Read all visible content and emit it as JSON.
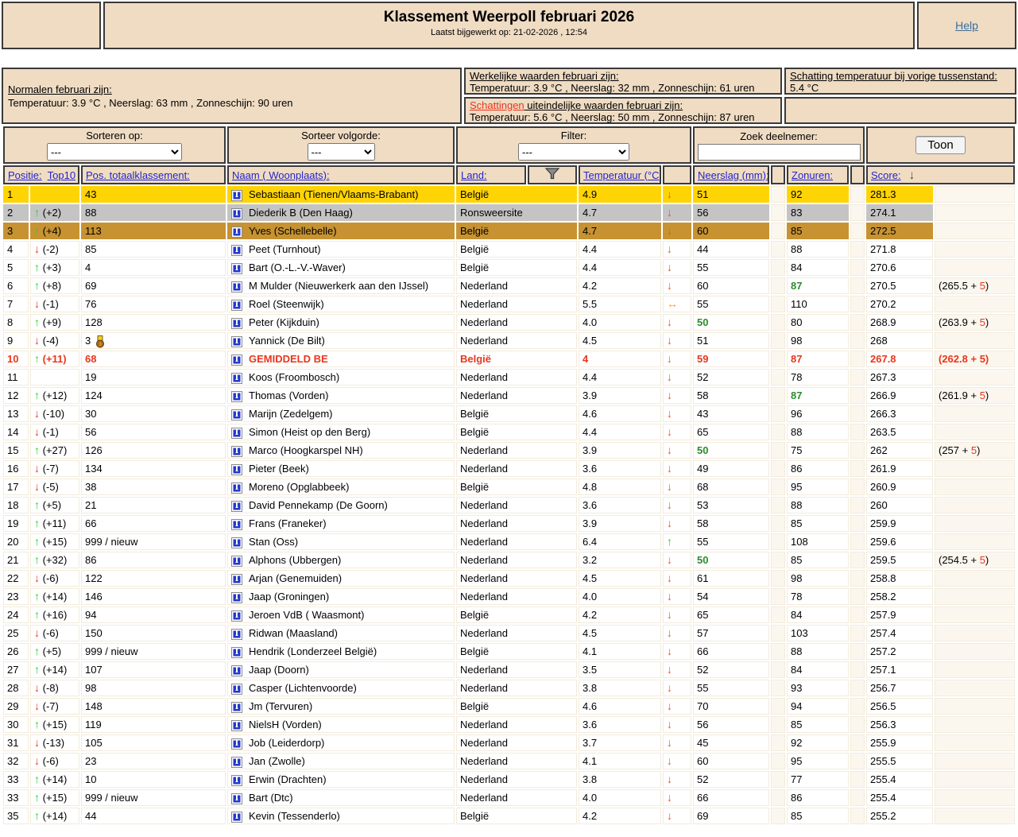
{
  "header": {
    "title": "Klassement Weerpoll februari 2026",
    "updated": "Laatst bijgewerkt op: 21-02-2026 , 12:54",
    "help_label": "Help"
  },
  "info": {
    "normals_title": "Normalen februari zijn:",
    "normals_values": "Temperatuur: 3.9 °C , Neerslag: 63 mm , Zonneschijn: 90 uren",
    "actual_title": "Werkelijke waarden februari zijn:",
    "actual_values": "Temperatuur: 3.9 °C , Neerslag: 32 mm , Zonneschijn: 61 uren",
    "estimate_title_red": "Schattingen",
    "estimate_title_rest": " uiteindelijke waarden februari zijn:",
    "estimate_values": "Temperatuur: 5.6 °C , Neerslag: 50 mm , Zonneschijn: 87 uren",
    "prev_estimate_title": "Schatting temperatuur bij vorige tussenstand:",
    "prev_estimate_value": "5.4 °C"
  },
  "controls": {
    "sort_by_label": "Sorteren op:",
    "sort_by_value": "---",
    "sort_order_label": "Sorteer volgorde:",
    "sort_order_value": "---",
    "filter_label": "Filter:",
    "filter_value": "---",
    "search_label": "Zoek deelnemer:",
    "search_value": "",
    "show_button": "Toon"
  },
  "columns": {
    "positie": "Positie:",
    "top10": "Top10",
    "pos_total": "Pos. totaalklassement:",
    "naam": "Naam ( Woonplaats):",
    "land": "Land:",
    "temperatuur": "Temperatuur (°C):",
    "neerslag": "Neerslag (mm):",
    "zonuren": "Zonuren:",
    "score": "Score:"
  },
  "icons": {
    "info_glyph": "I",
    "medal_rank": "3",
    "arrow_up": "↑",
    "arrow_down": "↓",
    "arrow_both": "↔",
    "score_sort_arrow": "↓",
    "funnel": "filter-funnel"
  },
  "colors": {
    "gold_row": "#FFD404",
    "silver_row": "#C4C4C4",
    "bronze_row": "#C79231",
    "beige_panel": "#EFDCC3",
    "red_text": "#E8361C",
    "green_value": "#2E8B2E",
    "arrow_up_green": "#2ECC2E",
    "trend_down_red": "#F4502C",
    "trend_both_orange": "#FF9820",
    "header_link_blue": "#2323CC",
    "help_link_blue": "#3A6E9E",
    "score_sort_arrow_maroon": "#7A2B10"
  },
  "rows": [
    {
      "pos": "1",
      "dir": "",
      "delta": "",
      "total": "43",
      "medal": false,
      "name": "Sebastiaan (Tienen/Vlaams-Brabant)",
      "land": "België",
      "temp": "4.9",
      "trend": "down",
      "rain": "51",
      "rain_green": false,
      "sun": "92",
      "sun_green": false,
      "score": "281.3",
      "bonus": "",
      "style": "gold"
    },
    {
      "pos": "2",
      "dir": "up",
      "delta": "(+2)",
      "total": "88",
      "medal": false,
      "name": "Diederik B (Den Haag)",
      "land": "Ronsweersite",
      "temp": "4.7",
      "trend": "down",
      "rain": "56",
      "rain_green": false,
      "sun": "83",
      "sun_green": false,
      "score": "274.1",
      "bonus": "",
      "style": "silver"
    },
    {
      "pos": "3",
      "dir": "up",
      "delta": "(+4)",
      "total": "113",
      "medal": false,
      "name": "Yves (Schellebelle)",
      "land": "België",
      "temp": "4.7",
      "trend": "down",
      "rain": "60",
      "rain_green": false,
      "sun": "85",
      "sun_green": false,
      "score": "272.5",
      "bonus": "",
      "style": "bronze"
    },
    {
      "pos": "4",
      "dir": "down",
      "delta": "(-2)",
      "total": "85",
      "medal": false,
      "name": "Peet (Turnhout)",
      "land": "België",
      "temp": "4.4",
      "trend": "down",
      "rain": "44",
      "rain_green": false,
      "sun": "88",
      "sun_green": false,
      "score": "271.8",
      "bonus": "",
      "style": ""
    },
    {
      "pos": "5",
      "dir": "up",
      "delta": "(+3)",
      "total": "4",
      "medal": false,
      "name": "Bart (O.-L.-V.-Waver)",
      "land": "België",
      "temp": "4.4",
      "trend": "down",
      "rain": "55",
      "rain_green": false,
      "sun": "84",
      "sun_green": false,
      "score": "270.6",
      "bonus": "",
      "style": ""
    },
    {
      "pos": "6",
      "dir": "up",
      "delta": "(+8)",
      "total": "69",
      "medal": false,
      "name": "M Mulder (Nieuwerkerk aan den IJssel)",
      "land": "Nederland",
      "temp": "4.2",
      "trend": "down",
      "rain": "60",
      "rain_green": false,
      "sun": "87",
      "sun_green": true,
      "score": "270.5",
      "bonus": "265.5",
      "style": ""
    },
    {
      "pos": "7",
      "dir": "down",
      "delta": "(-1)",
      "total": "76",
      "medal": false,
      "name": "Roel (Steenwijk)",
      "land": "Nederland",
      "temp": "5.5",
      "trend": "both",
      "rain": "55",
      "rain_green": false,
      "sun": "110",
      "sun_green": false,
      "score": "270.2",
      "bonus": "",
      "style": ""
    },
    {
      "pos": "8",
      "dir": "up",
      "delta": "(+9)",
      "total": "128",
      "medal": false,
      "name": "Peter (Kijkduin)",
      "land": "Nederland",
      "temp": "4.0",
      "trend": "down",
      "rain": "50",
      "rain_green": true,
      "sun": "80",
      "sun_green": false,
      "score": "268.9",
      "bonus": "263.9",
      "style": ""
    },
    {
      "pos": "9",
      "dir": "down",
      "delta": "(-4)",
      "total": "3",
      "medal": true,
      "name": "Yannick (De Bilt)",
      "land": "Nederland",
      "temp": "4.5",
      "trend": "down",
      "rain": "51",
      "rain_green": false,
      "sun": "98",
      "sun_green": false,
      "score": "268",
      "bonus": "",
      "style": ""
    },
    {
      "pos": "10",
      "dir": "up",
      "delta": "(+11)",
      "total": "68",
      "medal": false,
      "name": "GEMIDDELD BE",
      "land": "België",
      "temp": "4",
      "trend": "down",
      "rain": "59",
      "rain_green": false,
      "sun": "87",
      "sun_green": false,
      "score": "267.8",
      "bonus": "262.8",
      "style": "avg"
    },
    {
      "pos": "11",
      "dir": "",
      "delta": "",
      "total": "19",
      "medal": false,
      "name": "Koos (Froombosch)",
      "land": "Nederland",
      "temp": "4.4",
      "trend": "down",
      "rain": "52",
      "rain_green": false,
      "sun": "78",
      "sun_green": false,
      "score": "267.3",
      "bonus": "",
      "style": ""
    },
    {
      "pos": "12",
      "dir": "up",
      "delta": "(+12)",
      "total": "124",
      "medal": false,
      "name": "Thomas (Vorden)",
      "land": "Nederland",
      "temp": "3.9",
      "trend": "down",
      "rain": "58",
      "rain_green": false,
      "sun": "87",
      "sun_green": true,
      "score": "266.9",
      "bonus": "261.9",
      "style": ""
    },
    {
      "pos": "13",
      "dir": "down",
      "delta": "(-10)",
      "total": "30",
      "medal": false,
      "name": "Marijn (Zedelgem)",
      "land": "België",
      "temp": "4.6",
      "trend": "down",
      "rain": "43",
      "rain_green": false,
      "sun": "96",
      "sun_green": false,
      "score": "266.3",
      "bonus": "",
      "style": ""
    },
    {
      "pos": "14",
      "dir": "down",
      "delta": "(-1)",
      "total": "56",
      "medal": false,
      "name": "Simon (Heist op den Berg)",
      "land": "België",
      "temp": "4.4",
      "trend": "down",
      "rain": "65",
      "rain_green": false,
      "sun": "88",
      "sun_green": false,
      "score": "263.5",
      "bonus": "",
      "style": ""
    },
    {
      "pos": "15",
      "dir": "up",
      "delta": "(+27)",
      "total": "126",
      "medal": false,
      "name": "Marco (Hoogkarspel NH)",
      "land": "Nederland",
      "temp": "3.9",
      "trend": "down",
      "rain": "50",
      "rain_green": true,
      "sun": "75",
      "sun_green": false,
      "score": "262",
      "bonus": "257",
      "style": ""
    },
    {
      "pos": "16",
      "dir": "down",
      "delta": "(-7)",
      "total": "134",
      "medal": false,
      "name": "Pieter (Beek)",
      "land": "Nederland",
      "temp": "3.6",
      "trend": "down",
      "rain": "49",
      "rain_green": false,
      "sun": "86",
      "sun_green": false,
      "score": "261.9",
      "bonus": "",
      "style": ""
    },
    {
      "pos": "17",
      "dir": "down",
      "delta": "(-5)",
      "total": "38",
      "medal": false,
      "name": "Moreno (Opglabbeek)",
      "land": "België",
      "temp": "4.8",
      "trend": "down",
      "rain": "68",
      "rain_green": false,
      "sun": "95",
      "sun_green": false,
      "score": "260.9",
      "bonus": "",
      "style": ""
    },
    {
      "pos": "18",
      "dir": "up",
      "delta": "(+5)",
      "total": "21",
      "medal": false,
      "name": "David Pennekamp (De Goorn)",
      "land": "Nederland",
      "temp": "3.6",
      "trend": "down",
      "rain": "53",
      "rain_green": false,
      "sun": "88",
      "sun_green": false,
      "score": "260",
      "bonus": "",
      "style": ""
    },
    {
      "pos": "19",
      "dir": "up",
      "delta": "(+11)",
      "total": "66",
      "medal": false,
      "name": "Frans (Franeker)",
      "land": "Nederland",
      "temp": "3.9",
      "trend": "down",
      "rain": "58",
      "rain_green": false,
      "sun": "85",
      "sun_green": false,
      "score": "259.9",
      "bonus": "",
      "style": ""
    },
    {
      "pos": "20",
      "dir": "up",
      "delta": "(+15)",
      "total": "999 / nieuw",
      "medal": false,
      "name": "Stan (Oss)",
      "land": "Nederland",
      "temp": "6.4",
      "trend": "up",
      "rain": "55",
      "rain_green": false,
      "sun": "108",
      "sun_green": false,
      "score": "259.6",
      "bonus": "",
      "style": ""
    },
    {
      "pos": "21",
      "dir": "up",
      "delta": "(+32)",
      "total": "86",
      "medal": false,
      "name": "Alphons (Ubbergen)",
      "land": "Nederland",
      "temp": "3.2",
      "trend": "down",
      "rain": "50",
      "rain_green": true,
      "sun": "85",
      "sun_green": false,
      "score": "259.5",
      "bonus": "254.5",
      "style": ""
    },
    {
      "pos": "22",
      "dir": "down",
      "delta": "(-6)",
      "total": "122",
      "medal": false,
      "name": "Arjan (Genemuiden)",
      "land": "Nederland",
      "temp": "4.5",
      "trend": "down",
      "rain": "61",
      "rain_green": false,
      "sun": "98",
      "sun_green": false,
      "score": "258.8",
      "bonus": "",
      "style": ""
    },
    {
      "pos": "23",
      "dir": "up",
      "delta": "(+14)",
      "total": "146",
      "medal": false,
      "name": "Jaap (Groningen)",
      "land": "Nederland",
      "temp": "4.0",
      "trend": "down",
      "rain": "54",
      "rain_green": false,
      "sun": "78",
      "sun_green": false,
      "score": "258.2",
      "bonus": "",
      "style": ""
    },
    {
      "pos": "24",
      "dir": "up",
      "delta": "(+16)",
      "total": "94",
      "medal": false,
      "name": "Jeroen VdB ( Waasmont)",
      "land": "België",
      "temp": "4.2",
      "trend": "down",
      "rain": "65",
      "rain_green": false,
      "sun": "84",
      "sun_green": false,
      "score": "257.9",
      "bonus": "",
      "style": ""
    },
    {
      "pos": "25",
      "dir": "down",
      "delta": "(-6)",
      "total": "150",
      "medal": false,
      "name": "Ridwan (Maasland)",
      "land": "Nederland",
      "temp": "4.5",
      "trend": "down",
      "rain": "57",
      "rain_green": false,
      "sun": "103",
      "sun_green": false,
      "score": "257.4",
      "bonus": "",
      "style": ""
    },
    {
      "pos": "26",
      "dir": "up",
      "delta": "(+5)",
      "total": "999 / nieuw",
      "medal": false,
      "name": "Hendrik (Londerzeel België)",
      "land": "België",
      "temp": "4.1",
      "trend": "down",
      "rain": "66",
      "rain_green": false,
      "sun": "88",
      "sun_green": false,
      "score": "257.2",
      "bonus": "",
      "style": ""
    },
    {
      "pos": "27",
      "dir": "up",
      "delta": "(+14)",
      "total": "107",
      "medal": false,
      "name": "Jaap (Doorn)",
      "land": "Nederland",
      "temp": "3.5",
      "trend": "down",
      "rain": "52",
      "rain_green": false,
      "sun": "84",
      "sun_green": false,
      "score": "257.1",
      "bonus": "",
      "style": ""
    },
    {
      "pos": "28",
      "dir": "down",
      "delta": "(-8)",
      "total": "98",
      "medal": false,
      "name": "Casper (Lichtenvoorde)",
      "land": "Nederland",
      "temp": "3.8",
      "trend": "down",
      "rain": "55",
      "rain_green": false,
      "sun": "93",
      "sun_green": false,
      "score": "256.7",
      "bonus": "",
      "style": ""
    },
    {
      "pos": "29",
      "dir": "down",
      "delta": "(-7)",
      "total": "148",
      "medal": false,
      "name": "Jm (Tervuren)",
      "land": "België",
      "temp": "4.6",
      "trend": "down",
      "rain": "70",
      "rain_green": false,
      "sun": "94",
      "sun_green": false,
      "score": "256.5",
      "bonus": "",
      "style": ""
    },
    {
      "pos": "30",
      "dir": "up",
      "delta": "(+15)",
      "total": "119",
      "medal": false,
      "name": "NielsH (Vorden)",
      "land": "Nederland",
      "temp": "3.6",
      "trend": "down",
      "rain": "56",
      "rain_green": false,
      "sun": "85",
      "sun_green": false,
      "score": "256.3",
      "bonus": "",
      "style": ""
    },
    {
      "pos": "31",
      "dir": "down",
      "delta": "(-13)",
      "total": "105",
      "medal": false,
      "name": "Job (Leiderdorp)",
      "land": "Nederland",
      "temp": "3.7",
      "trend": "down",
      "rain": "45",
      "rain_green": false,
      "sun": "92",
      "sun_green": false,
      "score": "255.9",
      "bonus": "",
      "style": ""
    },
    {
      "pos": "32",
      "dir": "down",
      "delta": "(-6)",
      "total": "23",
      "medal": false,
      "name": "Jan (Zwolle)",
      "land": "Nederland",
      "temp": "4.1",
      "trend": "down",
      "rain": "60",
      "rain_green": false,
      "sun": "95",
      "sun_green": false,
      "score": "255.5",
      "bonus": "",
      "style": ""
    },
    {
      "pos": "33",
      "dir": "up",
      "delta": "(+14)",
      "total": "10",
      "medal": false,
      "name": "Erwin (Drachten)",
      "land": "Nederland",
      "temp": "3.8",
      "trend": "down",
      "rain": "52",
      "rain_green": false,
      "sun": "77",
      "sun_green": false,
      "score": "255.4",
      "bonus": "",
      "style": ""
    },
    {
      "pos": "33",
      "dir": "up",
      "delta": "(+15)",
      "total": "999 / nieuw",
      "medal": false,
      "name": "Bart (Dtc)",
      "land": "Nederland",
      "temp": "4.0",
      "trend": "down",
      "rain": "66",
      "rain_green": false,
      "sun": "86",
      "sun_green": false,
      "score": "255.4",
      "bonus": "",
      "style": ""
    },
    {
      "pos": "35",
      "dir": "up",
      "delta": "(+14)",
      "total": "44",
      "medal": false,
      "name": "Kevin (Tessenderlo)",
      "land": "België",
      "temp": "4.2",
      "trend": "down",
      "rain": "69",
      "rain_green": false,
      "sun": "85",
      "sun_green": false,
      "score": "255.2",
      "bonus": "",
      "style": ""
    }
  ]
}
